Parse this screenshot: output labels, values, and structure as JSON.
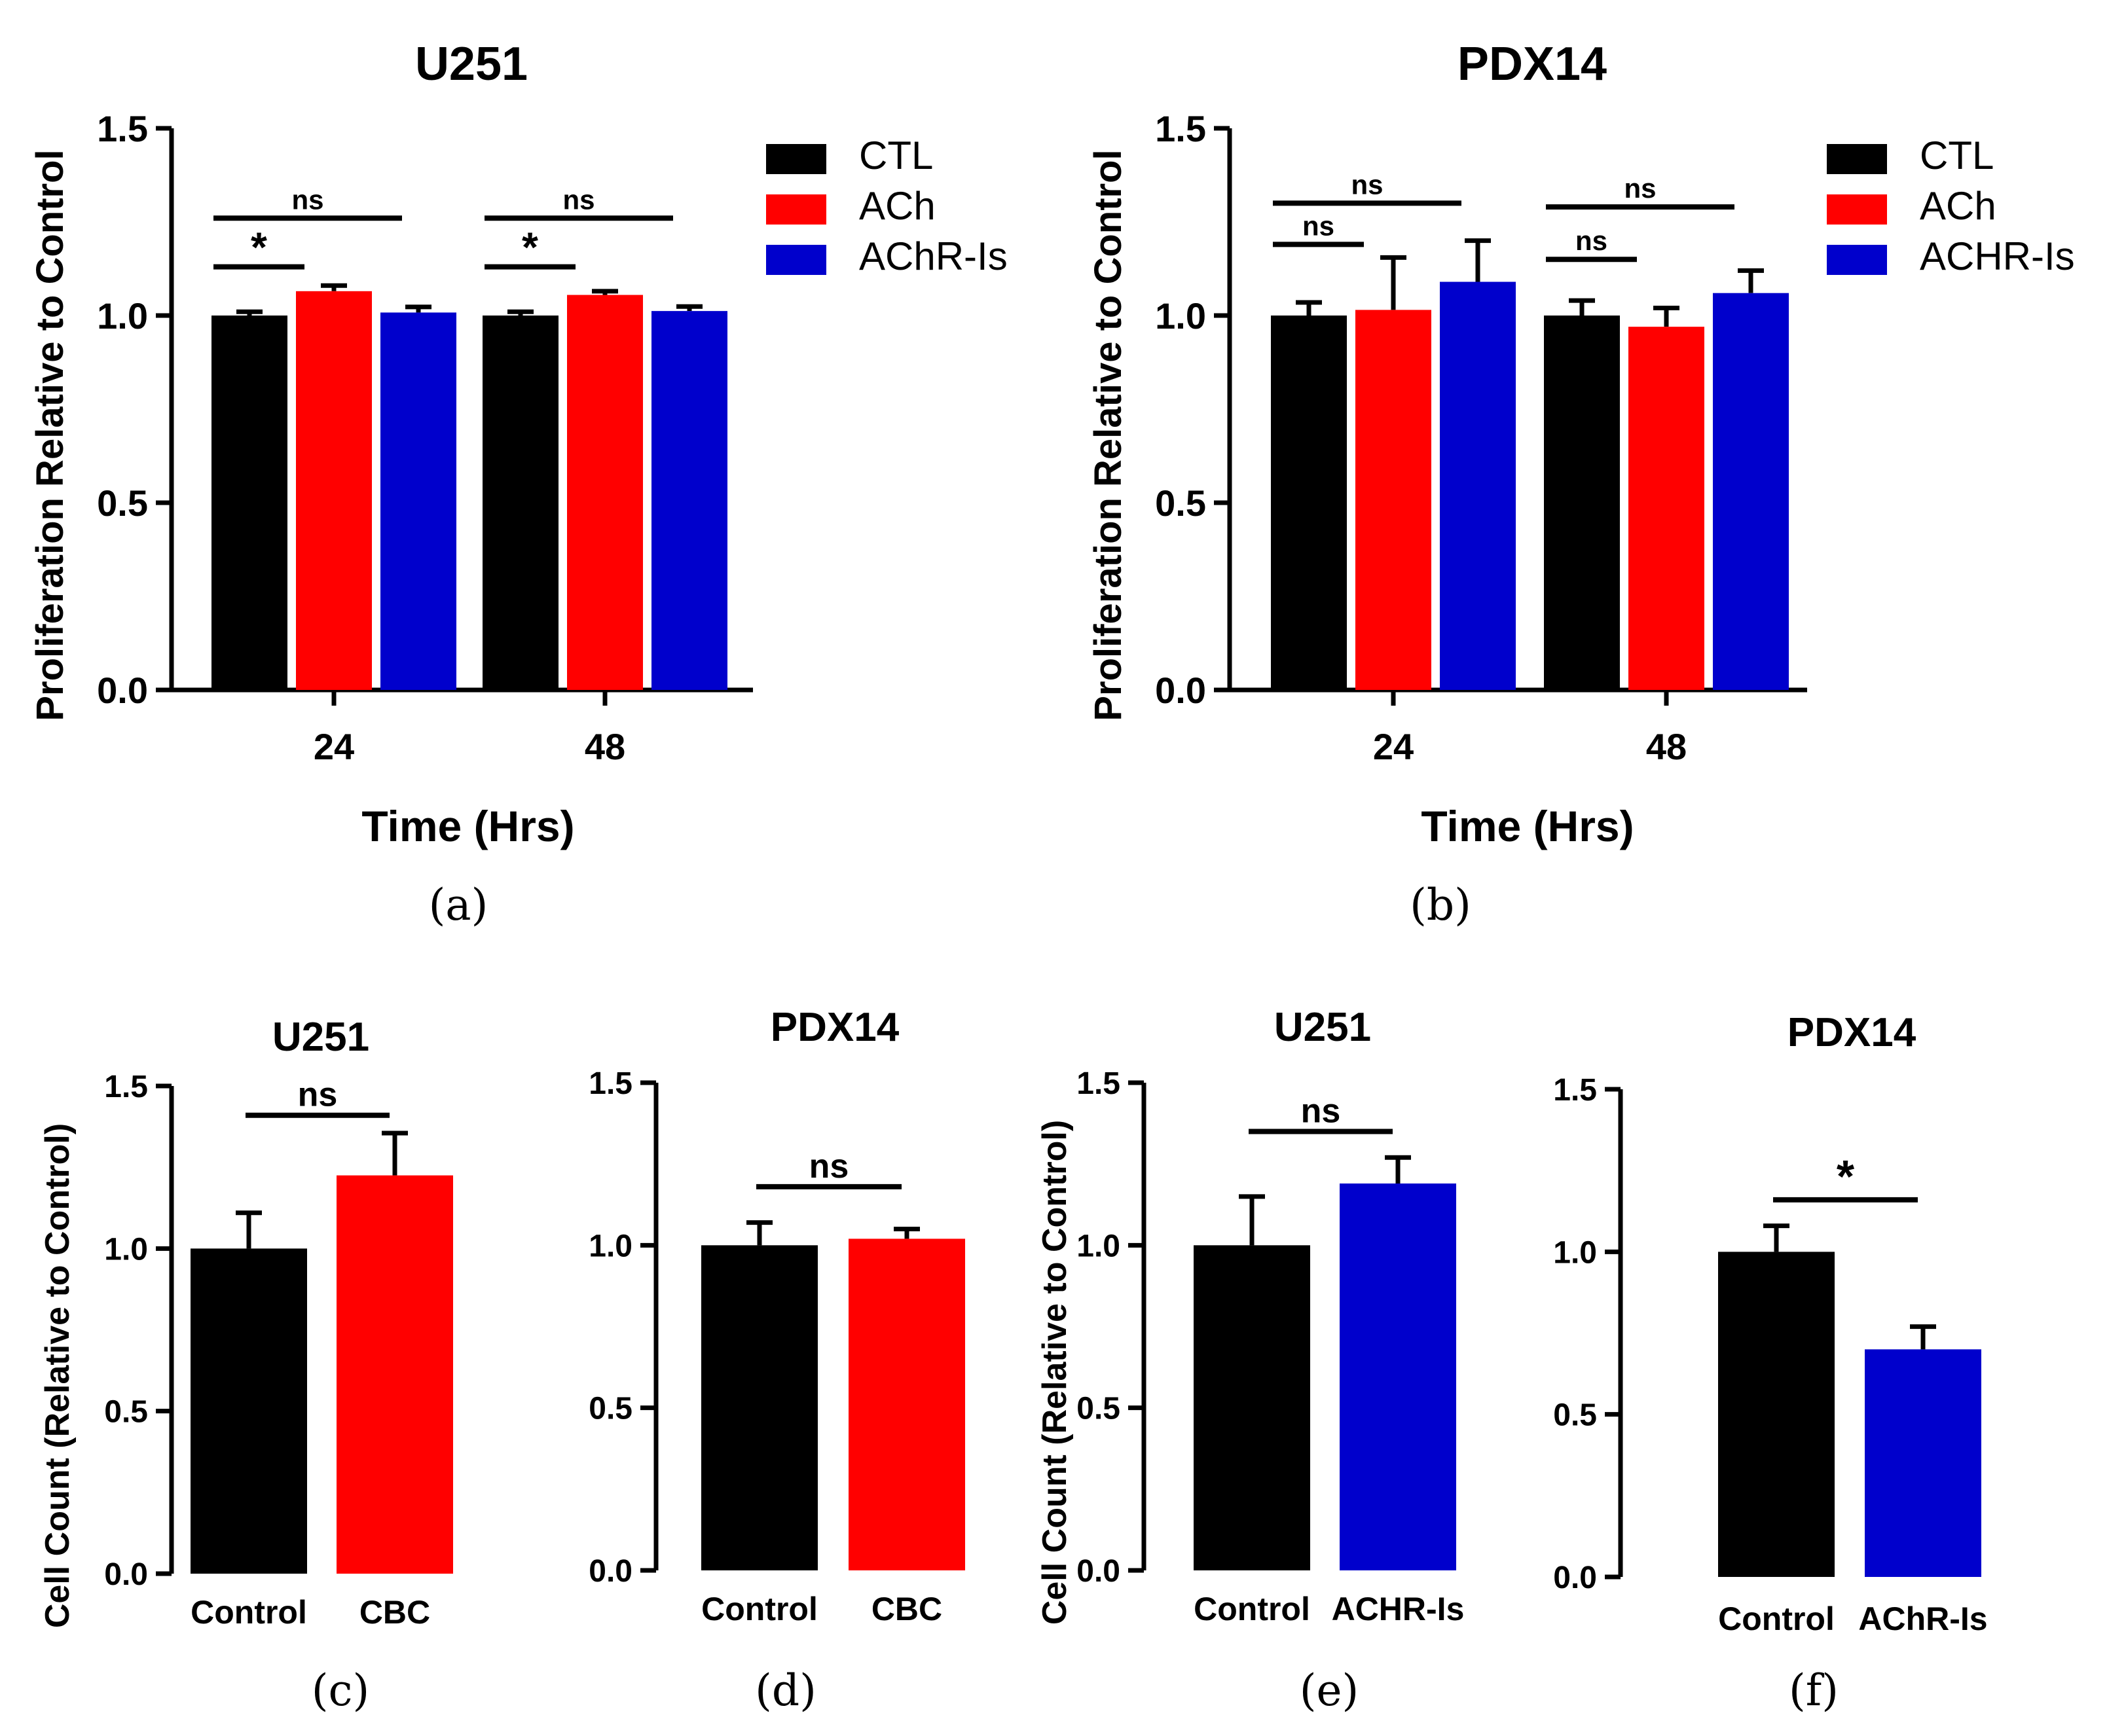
{
  "colors": {
    "CTL": "#000000",
    "ACh": "#ff0000",
    "AChR-Is": "#0000cc"
  },
  "chart_data": [
    {
      "id": "a",
      "type": "bar",
      "panel_label": "(a)",
      "title": "U251",
      "xlabel": "Time (Hrs)",
      "ylabel": "Proliferation Relative to Control",
      "ylim": [
        0,
        1.5
      ],
      "yticks": [
        "0.0",
        "0.5",
        "1.0",
        "1.5"
      ],
      "categories": [
        "24",
        "48"
      ],
      "legend_position": "right",
      "series": [
        {
          "name": "CTL",
          "color": "#000000",
          "values": [
            1.0,
            1.0
          ],
          "errors": [
            0.01,
            0.01
          ]
        },
        {
          "name": "ACh",
          "color": "#ff0000",
          "values": [
            1.065,
            1.055
          ],
          "errors": [
            0.015,
            0.01
          ]
        },
        {
          "name": "AChR-Is",
          "color": "#0000cc",
          "values": [
            1.008,
            1.012
          ],
          "errors": [
            0.015,
            0.012
          ]
        }
      ],
      "significance": [
        {
          "label": "ns",
          "category": 0,
          "from": 0,
          "to": 2,
          "y": 1.26
        },
        {
          "label": "*",
          "category": 0,
          "from": 0,
          "to": 1,
          "y": 1.13
        },
        {
          "label": "ns",
          "category": 1,
          "from": 0,
          "to": 2,
          "y": 1.26
        },
        {
          "label": "*",
          "category": 1,
          "from": 0,
          "to": 1,
          "y": 1.13
        }
      ]
    },
    {
      "id": "b",
      "type": "bar",
      "panel_label": "(b)",
      "title": "PDX14",
      "xlabel": "Time (Hrs)",
      "ylabel": "Proliferation Relative to Control",
      "ylim": [
        0,
        1.5
      ],
      "yticks": [
        "0.0",
        "0.5",
        "1.0",
        "1.5"
      ],
      "categories": [
        "24",
        "48"
      ],
      "legend_position": "right",
      "series": [
        {
          "name": "CTL",
          "color": "#000000",
          "values": [
            1.0,
            1.0
          ],
          "errors": [
            0.035,
            0.04
          ]
        },
        {
          "name": "ACh",
          "color": "#ff0000",
          "values": [
            1.015,
            0.97
          ],
          "errors": [
            0.14,
            0.05
          ]
        },
        {
          "name": "ACHR-Is",
          "color": "#0000cc",
          "values": [
            1.09,
            1.06
          ],
          "errors": [
            0.11,
            0.06
          ]
        }
      ],
      "significance": [
        {
          "label": "ns",
          "category": 0,
          "from": 0,
          "to": 2,
          "y": 1.3
        },
        {
          "label": "ns",
          "category": 0,
          "from": 0,
          "to": 1,
          "y": 1.19
        },
        {
          "label": "ns",
          "category": 1,
          "from": 0,
          "to": 2,
          "y": 1.29
        },
        {
          "label": "ns",
          "category": 1,
          "from": 0,
          "to": 1,
          "y": 1.15
        }
      ]
    },
    {
      "id": "c",
      "type": "bar",
      "panel_label": "(c)",
      "title": "U251",
      "ylabel": "Cell Count (Relative to Control)",
      "ylim": [
        0,
        1.5
      ],
      "yticks": [
        "0.0",
        "0.5",
        "1.0",
        "1.5"
      ],
      "categories": [
        "Control",
        "CBC"
      ],
      "colors": [
        "#000000",
        "#ff0000"
      ],
      "values": [
        1.0,
        1.225
      ],
      "errors": [
        0.11,
        0.13
      ],
      "significance": [
        {
          "label": "ns",
          "from": 0,
          "to": 1,
          "y": 1.41
        }
      ]
    },
    {
      "id": "d",
      "type": "bar",
      "panel_label": "(d)",
      "title": "PDX14",
      "ylabel": "",
      "ylim": [
        0,
        1.5
      ],
      "yticks": [
        "0.0",
        "0.5",
        "1.0",
        "1.5"
      ],
      "categories": [
        "Control",
        "CBC"
      ],
      "colors": [
        "#000000",
        "#ff0000"
      ],
      "values": [
        1.0,
        1.02
      ],
      "errors": [
        0.07,
        0.03
      ],
      "significance": [
        {
          "label": "ns",
          "from": 0,
          "to": 1,
          "y": 1.18
        }
      ]
    },
    {
      "id": "e",
      "type": "bar",
      "panel_label": "(e)",
      "title": "U251",
      "ylabel": "Cell Count (Relative to Control)",
      "ylim": [
        0,
        1.5
      ],
      "yticks": [
        "0.0",
        "0.5",
        "1.0",
        "1.5"
      ],
      "categories": [
        "Control",
        "ACHR-Is"
      ],
      "colors": [
        "#000000",
        "#0000cc"
      ],
      "values": [
        1.0,
        1.19
      ],
      "errors": [
        0.15,
        0.08
      ],
      "significance": [
        {
          "label": "ns",
          "from": 0,
          "to": 1,
          "y": 1.35
        }
      ]
    },
    {
      "id": "f",
      "type": "bar",
      "panel_label": "(f)",
      "title": "PDX14",
      "ylabel": "",
      "ylim": [
        0,
        1.5
      ],
      "yticks": [
        "0.0",
        "0.5",
        "1.0",
        "1.5"
      ],
      "categories": [
        "Control",
        "AChR-Is"
      ],
      "colors": [
        "#000000",
        "#0000cc"
      ],
      "values": [
        1.0,
        0.7
      ],
      "errors": [
        0.08,
        0.07
      ],
      "significance": [
        {
          "label": "*",
          "from": 0,
          "to": 1,
          "y": 1.16
        }
      ]
    }
  ]
}
